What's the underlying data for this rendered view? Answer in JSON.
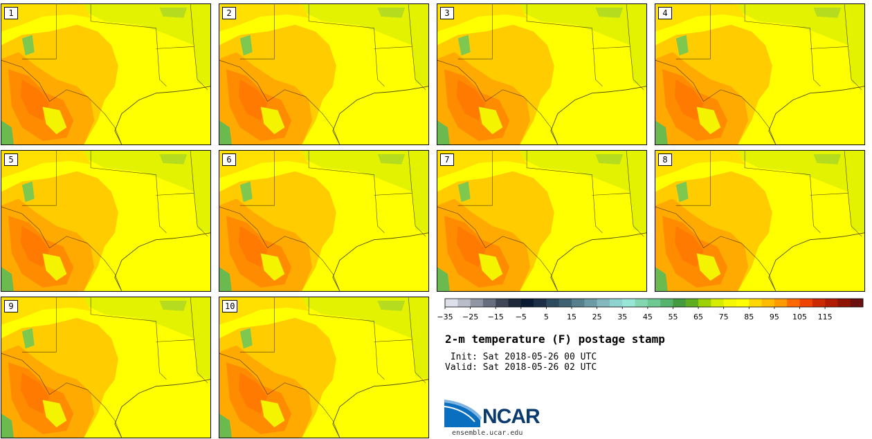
{
  "panels": [
    {
      "label": "1"
    },
    {
      "label": "2"
    },
    {
      "label": "3"
    },
    {
      "label": "4"
    },
    {
      "label": "5"
    },
    {
      "label": "6"
    },
    {
      "label": "7"
    },
    {
      "label": "8"
    },
    {
      "label": "9"
    },
    {
      "label": "10"
    }
  ],
  "colorbar": {
    "colors": [
      "#dde0ea",
      "#b9bdc9",
      "#8f95a3",
      "#676e7e",
      "#3f4757",
      "#1e2838",
      "#0b1a33",
      "#1b2e46",
      "#2e4b5e",
      "#3f6372",
      "#55808c",
      "#6c9ba5",
      "#85b8bd",
      "#8fd3cf",
      "#97e6d6",
      "#84d6b1",
      "#6ec893",
      "#56b46f",
      "#449a3e",
      "#5fae22",
      "#9ed100",
      "#d6ec00",
      "#f5f800",
      "#ffff00",
      "#ffd800",
      "#ffbb00",
      "#ff9a00",
      "#ff6a00",
      "#ee4400",
      "#cc2a00",
      "#b11c00",
      "#8c1400",
      "#6b1210"
    ],
    "tick_labels": [
      "−35",
      "−25",
      "−15",
      "−5",
      "5",
      "15",
      "25",
      "35",
      "45",
      "55",
      "65",
      "75",
      "85",
      "95",
      "105",
      "115"
    ]
  },
  "title": "2-m temperature (F) postage stamp",
  "init_text": " Init: Sat 2018-05-26 00 UTC",
  "valid_text": "Valid: Sat 2018-05-26 02 UTC",
  "logo": {
    "name": "NCAR",
    "url": "ensemble.ucar.edu"
  }
}
